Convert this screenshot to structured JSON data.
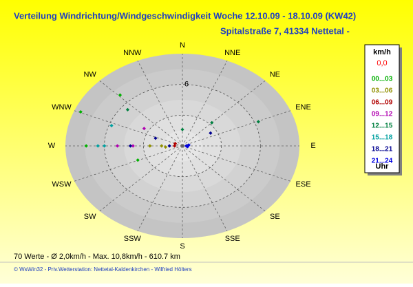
{
  "chart_data": {
    "type": "polar-scatter",
    "title": "Verteilung Windrichtung/Windgeschwindigkeit  Woche 12.10.09 - 18.10.09 (KW42)",
    "subtitle": "Spitalstraße 7, 41334 Nettetal -",
    "categories": [
      "N",
      "NNE",
      "NE",
      "ENE",
      "E",
      "ESE",
      "SE",
      "SSE",
      "S",
      "SSW",
      "SW",
      "WSW",
      "W",
      "WNW",
      "NW",
      "NNW"
    ],
    "rlim": [
      0,
      9
    ],
    "rticks": [
      6
    ],
    "rgrid": [
      3,
      6
    ],
    "legend_title": "km/h",
    "legend_unit": "Uhr",
    "calm": {
      "name": "0,0",
      "color": "#ff0000"
    },
    "series": [
      {
        "name": "00...03",
        "color": "#00b000",
        "directions": [
          316,
          293,
          270,
          248
        ],
        "values": [
          6.9,
          8.5,
          7.4,
          3.7
        ]
      },
      {
        "name": "03...06",
        "color": "#909000",
        "directions": [
          270,
          270,
          265
        ],
        "values": [
          1.6,
          2.5,
          1.3
        ]
      },
      {
        "name": "06...09",
        "color": "#b00000",
        "directions": [
          270,
          292
        ],
        "values": [
          0.6,
          0.6
        ]
      },
      {
        "name": "09...12",
        "color": "#b000b0",
        "directions": [
          300,
          270,
          270
        ],
        "values": [
          3.4,
          5.0,
          3.8
        ]
      },
      {
        "name": "12...15",
        "color": "#008040",
        "directions": [
          68,
          45,
          0,
          310
        ],
        "values": [
          6.3,
          3.2,
          1.6,
          5.5
        ]
      },
      {
        "name": "15...18",
        "color": "#00a0a0",
        "directions": [
          270,
          270,
          290
        ],
        "values": [
          6.5,
          6.0,
          5.8
        ]
      },
      {
        "name": "18...21",
        "color": "#000090",
        "directions": [
          60,
          290,
          270,
          270
        ],
        "values": [
          2.5,
          2.2,
          4.0,
          1.0
        ]
      },
      {
        "name": "21...24",
        "color": "#0000e0",
        "directions": [
          90,
          80,
          100
        ],
        "values": [
          0.3,
          0.5,
          0.4
        ]
      }
    ],
    "stats": "70 Werte   -   Ø 2,0km/h   -   Max. 10,8km/h   -   610.7 km",
    "credits": "© WsWin32   -   Priv.Wetterstation: Nettetal-Kaldenkirchen   -   Wilfried Hölters"
  }
}
